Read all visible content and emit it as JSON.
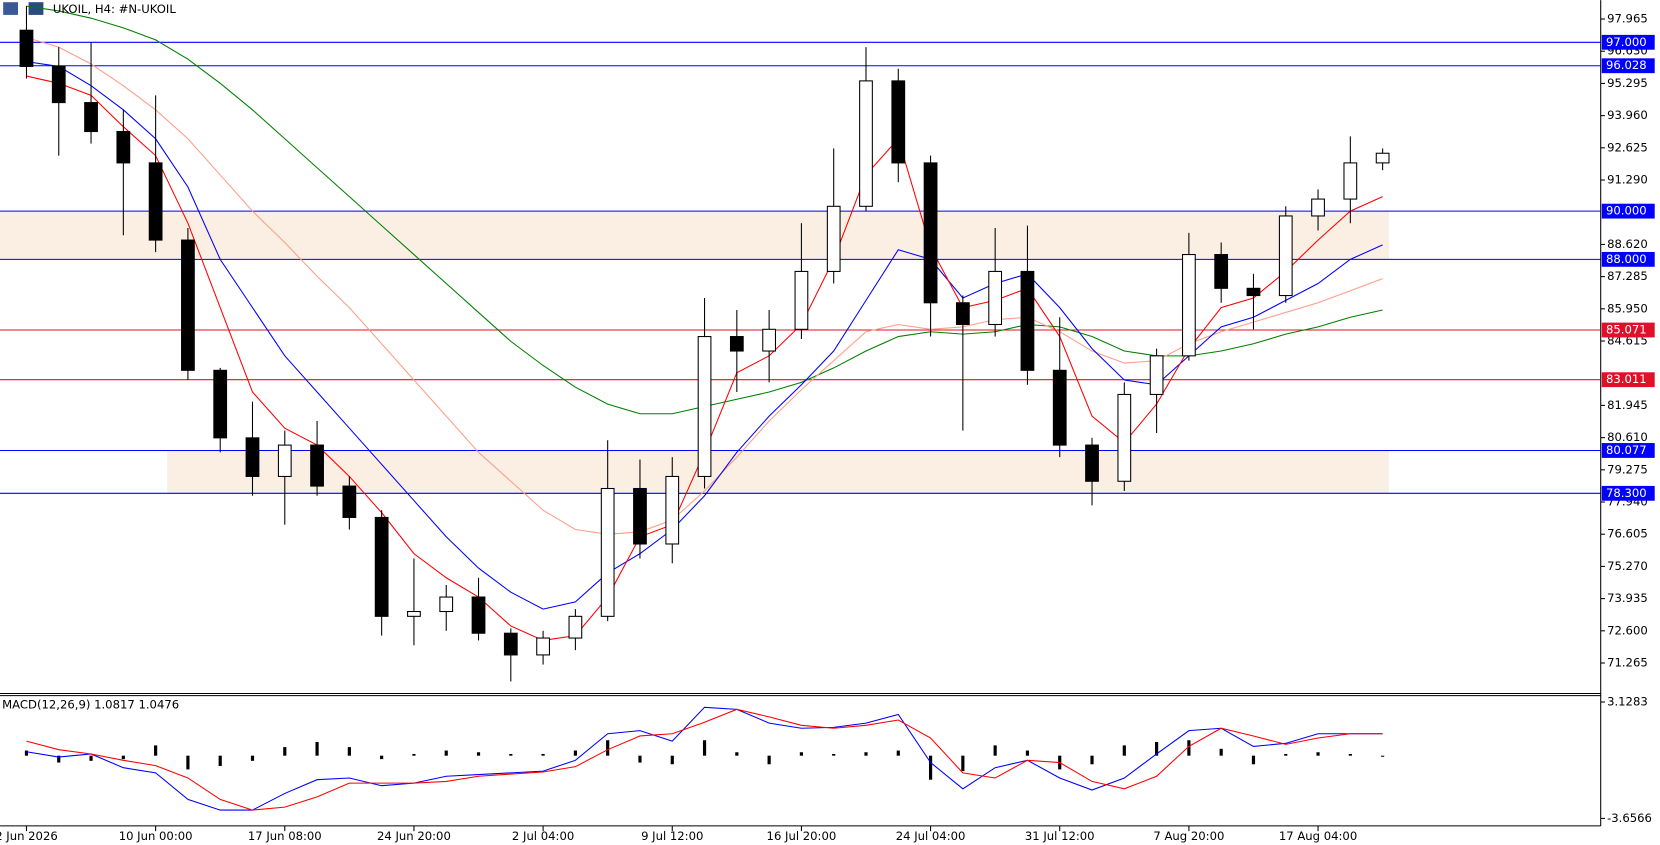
{
  "chart_data": [
    {
      "type": "candlestick",
      "title": "UKOIL, H4:  #N-UKOIL",
      "categories": [
        "2 Jun 2026",
        null,
        null,
        null,
        "10 Jun 00:00",
        null,
        null,
        null,
        "17 Jun 08:00",
        null,
        null,
        null,
        "24 Jun 20:00",
        null,
        null,
        null,
        "2 Jul 04:00",
        null,
        null,
        null,
        "9 Jul 12:00",
        null,
        null,
        null,
        "16 Jul 20:00",
        null,
        null,
        null,
        "24 Jul 04:00",
        null,
        null,
        null,
        "31 Jul 12:00",
        null,
        null,
        null,
        "7 Aug 20:00",
        null,
        null,
        null,
        "17 Aug 04:00",
        null,
        null
      ],
      "open": [
        97.5,
        96,
        94.5,
        93.3,
        92,
        88.8,
        83.4,
        80.6,
        79,
        80.3,
        78.6,
        77.3,
        73.2,
        73.4,
        74.0,
        72.5,
        71.6,
        72.3,
        73.2,
        78.5,
        76.2,
        79.0,
        84.8,
        84.2,
        85.1,
        87.5,
        90.2,
        95.4,
        92.0,
        86.2,
        85.3,
        87.5,
        83.4,
        80.3,
        78.8,
        82.4,
        84.0,
        88.2,
        86.8,
        86.5,
        89.8,
        90.5,
        92.0
      ],
      "high": [
        98.5,
        96.8,
        97.0,
        94.2,
        94.8,
        89.3,
        83.5,
        82.1,
        80.9,
        81.3,
        79.0,
        77.6,
        75.6,
        74.5,
        74.8,
        72.7,
        72.6,
        73.5,
        80.5,
        79.7,
        79.8,
        86.4,
        85.9,
        85.9,
        89.5,
        92.6,
        96.8,
        95.9,
        92.3,
        86.5,
        89.3,
        89.4,
        85.6,
        80.6,
        82.9,
        84.3,
        89.1,
        88.7,
        87.4,
        90.2,
        90.9,
        93.1,
        92.6
      ],
      "low": [
        95.5,
        92.3,
        92.8,
        89.0,
        88.3,
        83.0,
        80.0,
        78.2,
        77.0,
        78.2,
        76.8,
        72.4,
        72.0,
        72.6,
        72.2,
        70.5,
        71.2,
        71.8,
        73.0,
        75.6,
        75.4,
        78.5,
        82.5,
        82.9,
        84.7,
        87.0,
        90.0,
        91.2,
        84.8,
        80.9,
        84.8,
        82.8,
        79.8,
        77.8,
        78.4,
        80.8,
        83.8,
        86.2,
        85.1,
        86.2,
        89.2,
        89.5,
        91.7
      ],
      "close": [
        96.0,
        94.5,
        93.3,
        92.0,
        88.8,
        83.4,
        80.6,
        79.0,
        80.3,
        78.6,
        77.3,
        73.2,
        73.4,
        74.0,
        72.5,
        71.6,
        72.3,
        73.2,
        78.5,
        76.2,
        79.0,
        84.8,
        84.2,
        85.1,
        87.5,
        90.2,
        95.4,
        92.0,
        86.2,
        85.3,
        87.5,
        83.4,
        80.3,
        78.8,
        82.4,
        84.0,
        88.2,
        86.8,
        86.5,
        89.8,
        90.5,
        92.0,
        92.4
      ],
      "series": [
        {
          "color": "#008000",
          "values": [
            98.5,
            98.3,
            98.0,
            97.6,
            97.1,
            96.3,
            95.3,
            94.2,
            93.0,
            91.8,
            90.6,
            89.4,
            88.2,
            87.0,
            85.8,
            84.6,
            83.6,
            82.7,
            82.0,
            81.6,
            81.6,
            81.9,
            82.2,
            82.5,
            82.9,
            83.5,
            84.2,
            84.8,
            85.0,
            84.9,
            85.0,
            85.3,
            85.2,
            84.8,
            84.2,
            84.0,
            84.0,
            84.2,
            84.5,
            84.9,
            85.2,
            85.6,
            85.9
          ]
        },
        {
          "color": "#ff9d8a",
          "values": [
            97.2,
            96.8,
            96.1,
            95.2,
            94.2,
            93.0,
            91.5,
            90.0,
            88.7,
            87.3,
            86.0,
            84.5,
            83.0,
            81.5,
            80.0,
            78.8,
            77.6,
            76.8,
            76.6,
            76.7,
            77.2,
            78.4,
            79.8,
            81.3,
            82.6,
            83.8,
            85.0,
            85.3,
            85.1,
            85.2,
            85.5,
            85.6,
            85.0,
            84.2,
            83.7,
            83.8,
            84.5,
            85.0,
            85.4,
            85.8,
            86.2,
            86.7,
            87.2
          ]
        },
        {
          "color": "#0000ff",
          "values": [
            96.2,
            96.0,
            95.2,
            94.2,
            93.0,
            91.0,
            88.0,
            86.0,
            84.0,
            82.5,
            81.0,
            79.5,
            78.0,
            76.5,
            75.2,
            74.2,
            73.5,
            73.8,
            75.0,
            75.8,
            76.8,
            78.2,
            80.0,
            81.5,
            82.8,
            84.2,
            86.3,
            88.4,
            88.0,
            86.4,
            87.0,
            87.4,
            86.0,
            84.3,
            83.0,
            82.8,
            84.0,
            85.2,
            85.6,
            86.3,
            87.0,
            88.0,
            88.6
          ]
        },
        {
          "color": "#ff0000",
          "values": [
            95.6,
            95.3,
            94.8,
            93.5,
            92.3,
            89.5,
            86.0,
            82.5,
            81.0,
            80.3,
            79.0,
            77.5,
            75.8,
            74.8,
            74.0,
            72.8,
            72.2,
            72.4,
            74.0,
            76.5,
            77.0,
            80.0,
            83.3,
            84.0,
            85.3,
            88.0,
            91.5,
            93.0,
            88.5,
            86.0,
            86.3,
            86.8,
            84.8,
            81.5,
            80.4,
            82.0,
            84.3,
            86.0,
            86.4,
            87.5,
            88.8,
            90.0,
            90.6
          ]
        }
      ],
      "levels": [
        {
          "value": 97,
          "label": "97.000",
          "color": "#0000ff"
        },
        {
          "value": 96.028,
          "label": "96.028",
          "color": "#0000ff"
        },
        {
          "value": 90,
          "label": "90.000",
          "color": "#0000ff"
        },
        {
          "value": 88,
          "label": "88.000",
          "color": "#0000ff"
        },
        {
          "value": 85.071,
          "label": "85.071",
          "color": "#e0102a"
        },
        {
          "value": 83.011,
          "label": "83.011",
          "color": "#e0102a"
        },
        {
          "value": 80.077,
          "label": "80.077",
          "color": "#0000ff"
        },
        {
          "value": 78.3,
          "label": "78.300",
          "color": "#0000ff"
        }
      ],
      "zones": [
        [
          2,
          3
        ],
        [
          6,
          7
        ]
      ],
      "zone_color": "#fbeee3",
      "ylim": [
        70.0,
        98.75
      ],
      "yticks": [
        97.965,
        {
          "value": 96.63,
          "label": "96.630"
        },
        95.295,
        {
          "value": 93.96,
          "label": "93.960"
        },
        92.625,
        {
          "value": 91.29,
          "label": "91.290"
        },
        {
          "value": 88.62,
          "label": "88.620"
        },
        87.285,
        {
          "value": 85.95,
          "label": "85.950"
        },
        84.615,
        81.945,
        {
          "value": 80.61,
          "label": "80.610"
        },
        79.275,
        {
          "value": 77.94,
          "label": "77.940"
        },
        76.605,
        {
          "value": 75.27,
          "label": "75.270"
        },
        73.935,
        {
          "value": 72.6,
          "label": "72.600"
        },
        71.265
      ]
    },
    {
      "type": "macd",
      "title": "MACD(12,26,9) 1.0817 1.0476",
      "histogram": [
        0.3,
        -0.4,
        -0.3,
        -0.2,
        0.6,
        -0.8,
        -0.6,
        -0.3,
        0.5,
        0.8,
        0.5,
        -0.2,
        0.1,
        0.3,
        0.2,
        0.1,
        0.1,
        0.3,
        0.9,
        -0.4,
        -0.5,
        0.9,
        0.2,
        -0.5,
        0.2,
        0.1,
        0.2,
        0.3,
        -1.4,
        -0.9,
        0.6,
        0.3,
        -0.8,
        -0.5,
        0.6,
        0.8,
        0.9,
        0.4,
        -0.5,
        0.1,
        0.2,
        0.1,
        0.0
      ],
      "series": [
        {
          "color": "#0000ff",
          "values": [
            0.23,
            -0.08,
            0.1,
            -0.7,
            -1.0,
            -2.55,
            -3.17,
            -3.17,
            -2.2,
            -1.4,
            -1.3,
            -1.75,
            -1.6,
            -1.2,
            -1.1,
            -1.0,
            -0.9,
            -0.27,
            1.28,
            1.46,
            0.85,
            2.82,
            2.7,
            1.9,
            1.6,
            1.65,
            1.9,
            2.4,
            -0.4,
            -1.93,
            -0.7,
            -0.27,
            -1.3,
            -2.0,
            -1.3,
            0.1,
            1.46,
            1.6,
            0.54,
            0.72,
            1.28,
            1.28,
            1.28
          ]
        },
        {
          "color": "#ff0000",
          "values": [
            0.85,
            0.35,
            0.1,
            -0.27,
            -0.58,
            -1.3,
            -2.55,
            -3.17,
            -3.0,
            -2.4,
            -1.6,
            -1.6,
            -1.6,
            -1.5,
            -1.2,
            -1.07,
            -0.95,
            -0.64,
            0.35,
            1.15,
            1.28,
            1.95,
            2.7,
            2.26,
            1.77,
            1.6,
            1.77,
            2.08,
            1.03,
            -1.0,
            -1.3,
            -0.27,
            -0.4,
            -1.5,
            -1.93,
            -1.2,
            0.54,
            1.6,
            1.15,
            0.66,
            1.03,
            1.28,
            1.28
          ]
        }
      ],
      "ylim": [
        -4.09,
        3.5
      ],
      "yticks": [
        3.1283,
        -3.6566
      ]
    }
  ]
}
